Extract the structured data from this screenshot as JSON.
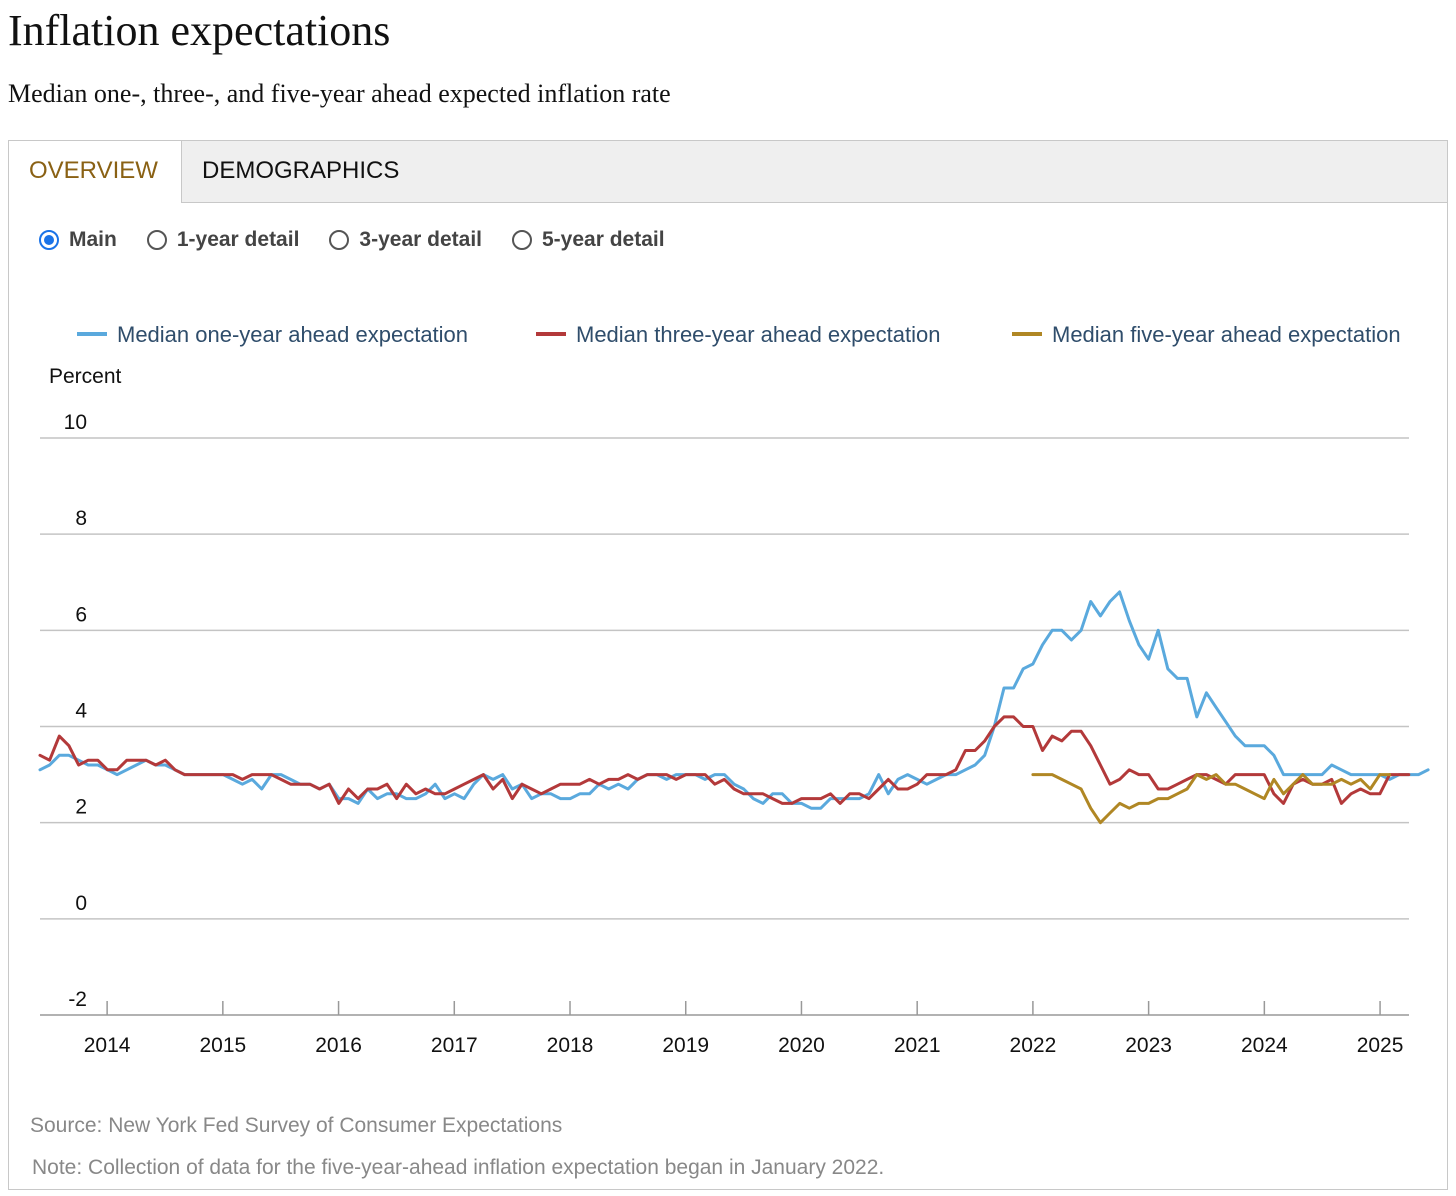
{
  "header": {
    "title": "Inflation expectations",
    "subtitle": "Median one-, three-, and five-year ahead expected inflation rate"
  },
  "tabs": [
    {
      "label": "OVERVIEW",
      "active": true
    },
    {
      "label": "DEMOGRAPHICS",
      "active": false
    }
  ],
  "view_options": [
    {
      "label": "Main",
      "selected": true
    },
    {
      "label": "1-year detail",
      "selected": false
    },
    {
      "label": "3-year detail",
      "selected": false
    },
    {
      "label": "5-year detail",
      "selected": false
    }
  ],
  "colors": {
    "one_year": "#5aa9dd",
    "three_year": "#b3393a",
    "five_year": "#b08724",
    "active_tab": "#8a6114",
    "legend_text": "#2f4d6b"
  },
  "chart_data": {
    "type": "line",
    "ylabel": "Percent",
    "ylim": [
      -2,
      10
    ],
    "yticks": [
      -2,
      0,
      2,
      4,
      6,
      8,
      10
    ],
    "xlim": [
      2013.42,
      2025.25
    ],
    "xticks": [
      "2014",
      "2015",
      "2016",
      "2017",
      "2018",
      "2019",
      "2020",
      "2021",
      "2022",
      "2023",
      "2024",
      "2025"
    ],
    "legend_position": "top",
    "grid": "horizontal",
    "series": [
      {
        "name": "Median one-year ahead expectation",
        "color_key": "one_year",
        "start": 2013.42,
        "step": 0.0833,
        "values": [
          3.1,
          3.2,
          3.4,
          3.4,
          3.3,
          3.2,
          3.2,
          3.1,
          3.0,
          3.1,
          3.2,
          3.3,
          3.2,
          3.2,
          3.1,
          3.0,
          3.0,
          3.0,
          3.0,
          3.0,
          2.9,
          2.8,
          2.9,
          2.7,
          3.0,
          3.0,
          2.9,
          2.8,
          2.8,
          2.7,
          2.8,
          2.5,
          2.5,
          2.4,
          2.7,
          2.5,
          2.6,
          2.6,
          2.5,
          2.5,
          2.6,
          2.8,
          2.5,
          2.6,
          2.5,
          2.8,
          3.0,
          2.9,
          3.0,
          2.7,
          2.8,
          2.5,
          2.6,
          2.6,
          2.5,
          2.5,
          2.6,
          2.6,
          2.8,
          2.7,
          2.8,
          2.7,
          2.9,
          3.0,
          3.0,
          2.9,
          3.0,
          3.0,
          3.0,
          2.9,
          3.0,
          3.0,
          2.8,
          2.7,
          2.5,
          2.4,
          2.6,
          2.6,
          2.4,
          2.4,
          2.3,
          2.3,
          2.5,
          2.5,
          2.5,
          2.5,
          2.6,
          3.0,
          2.6,
          2.9,
          3.0,
          2.9,
          2.8,
          2.9,
          3.0,
          3.0,
          3.1,
          3.2,
          3.4,
          4.0,
          4.8,
          4.8,
          5.2,
          5.3,
          5.7,
          6.0,
          6.0,
          5.8,
          6.0,
          6.6,
          6.3,
          6.6,
          6.8,
          6.2,
          5.7,
          5.4,
          6.0,
          5.2,
          5.0,
          5.0,
          4.2,
          4.7,
          4.4,
          4.1,
          3.8,
          3.6,
          3.6,
          3.6,
          3.4,
          3.0,
          3.0,
          3.0,
          3.0,
          3.0,
          3.2,
          3.1,
          3.0,
          3.0,
          3.0,
          3.0,
          2.9,
          3.0,
          3.0,
          3.0,
          3.1
        ]
      },
      {
        "name": "Median three-year ahead expectation",
        "color_key": "three_year",
        "start": 2013.42,
        "step": 0.0833,
        "values": [
          3.4,
          3.3,
          3.8,
          3.6,
          3.2,
          3.3,
          3.3,
          3.1,
          3.1,
          3.3,
          3.3,
          3.3,
          3.2,
          3.3,
          3.1,
          3.0,
          3.0,
          3.0,
          3.0,
          3.0,
          3.0,
          2.9,
          3.0,
          3.0,
          3.0,
          2.9,
          2.8,
          2.8,
          2.8,
          2.7,
          2.8,
          2.4,
          2.7,
          2.5,
          2.7,
          2.7,
          2.8,
          2.5,
          2.8,
          2.6,
          2.7,
          2.6,
          2.6,
          2.7,
          2.8,
          2.9,
          3.0,
          2.7,
          2.9,
          2.5,
          2.8,
          2.7,
          2.6,
          2.7,
          2.8,
          2.8,
          2.8,
          2.9,
          2.8,
          2.9,
          2.9,
          3.0,
          2.9,
          3.0,
          3.0,
          3.0,
          2.9,
          3.0,
          3.0,
          3.0,
          2.8,
          2.9,
          2.7,
          2.6,
          2.6,
          2.6,
          2.5,
          2.4,
          2.4,
          2.5,
          2.5,
          2.5,
          2.6,
          2.4,
          2.6,
          2.6,
          2.5,
          2.7,
          2.9,
          2.7,
          2.7,
          2.8,
          3.0,
          3.0,
          3.0,
          3.1,
          3.5,
          3.5,
          3.7,
          4.0,
          4.2,
          4.2,
          4.0,
          4.0,
          3.5,
          3.8,
          3.7,
          3.9,
          3.9,
          3.6,
          3.2,
          2.8,
          2.9,
          3.1,
          3.0,
          3.0,
          2.7,
          2.7,
          2.8,
          2.9,
          3.0,
          3.0,
          2.9,
          2.8,
          3.0,
          3.0,
          3.0,
          3.0,
          2.6,
          2.4,
          2.8,
          2.9,
          2.8,
          2.8,
          2.9,
          2.4,
          2.6,
          2.7,
          2.6,
          2.6,
          3.0,
          3.0,
          3.0
        ]
      },
      {
        "name": "Median five-year ahead expectation",
        "color_key": "five_year",
        "start": 2022.0,
        "step": 0.0833,
        "values": [
          3.0,
          3.0,
          3.0,
          2.9,
          2.8,
          2.7,
          2.3,
          2.0,
          2.2,
          2.4,
          2.3,
          2.4,
          2.4,
          2.5,
          2.5,
          2.6,
          2.7,
          3.0,
          2.9,
          3.0,
          2.8,
          2.8,
          2.7,
          2.6,
          2.5,
          2.9,
          2.6,
          2.8,
          3.0,
          2.8,
          2.8,
          2.8,
          2.9,
          2.8,
          2.9,
          2.7,
          3.0,
          3.0
        ]
      }
    ]
  },
  "footer": {
    "source": "Source: New York Fed Survey of Consumer Expectations",
    "note": "Note: Collection of data for the five-year-ahead inflation expectation began in January 2022."
  }
}
